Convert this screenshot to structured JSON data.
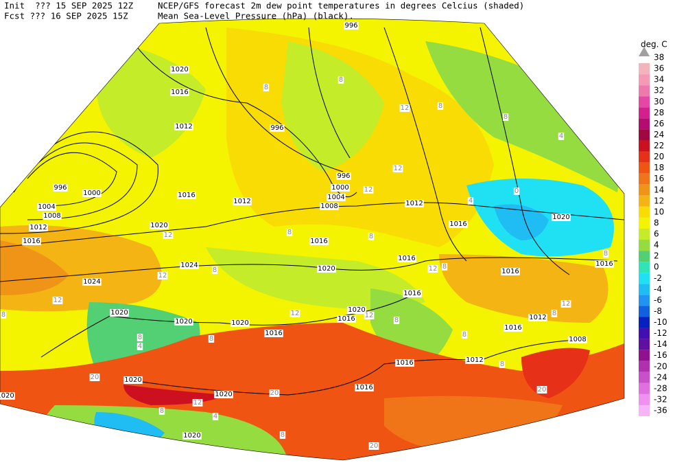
{
  "header": {
    "init": "Init  ??? 15 SEP 2025 12Z",
    "fcst": "Fcst ??? 16 SEP 2025 15Z",
    "line1": "NCEP/GFS forecast 2m dew point temperatures in degrees Celcius (shaded)",
    "line2": "Mean Sea-Level Pressure (hPa) (black)."
  },
  "colorbar": {
    "unit": "deg. C",
    "levels": [
      38,
      36,
      34,
      32,
      30,
      28,
      26,
      24,
      22,
      20,
      18,
      16,
      14,
      12,
      10,
      8,
      6,
      4,
      2,
      0,
      -2,
      -4,
      -6,
      -8,
      -10,
      -12,
      -14,
      -16,
      -20,
      -24,
      -28,
      -32,
      -36
    ],
    "colors": [
      "#a0a0a0",
      "#f4b4bc",
      "#f49ab4",
      "#ee7aac",
      "#e448a4",
      "#d4208c",
      "#b40c70",
      "#a00840",
      "#cc1020",
      "#e63018",
      "#f05412",
      "#f07418",
      "#f09418",
      "#f4b414",
      "#f8dc04",
      "#f4f400",
      "#c4ec28",
      "#94dc40",
      "#54d074",
      "#30e4b8",
      "#20e0f4",
      "#20bcf4",
      "#2094f0",
      "#1060e0",
      "#0820c0",
      "#4010b0",
      "#6010a0",
      "#901090",
      "#b030b0",
      "#c850c8",
      "#e070e0",
      "#f090f0",
      "#f8b4f8"
    ]
  },
  "isobar_labels": [
    996,
    1020,
    1016,
    1012,
    996,
    996,
    1000,
    1004,
    1008,
    1016,
    1012,
    1012,
    1016,
    1020,
    996,
    1000,
    1004,
    1008,
    1012,
    1016,
    1020,
    1016,
    1016,
    1020,
    1024,
    1024,
    1016,
    1016,
    1016,
    1020,
    1020,
    1016,
    1012,
    1020,
    1020,
    1016,
    1016,
    1008,
    1016,
    1012,
    1020,
    1016,
    1020,
    1020,
    1020
  ],
  "dewpoint_labels": [
    8,
    8,
    12,
    8,
    8,
    4,
    12,
    12,
    12,
    8,
    8,
    0,
    4,
    8,
    12,
    8,
    8,
    12,
    12,
    8,
    12,
    8,
    12,
    8,
    12,
    8,
    4,
    8,
    8,
    8,
    20,
    20,
    12,
    8,
    4,
    8,
    20,
    20
  ]
}
